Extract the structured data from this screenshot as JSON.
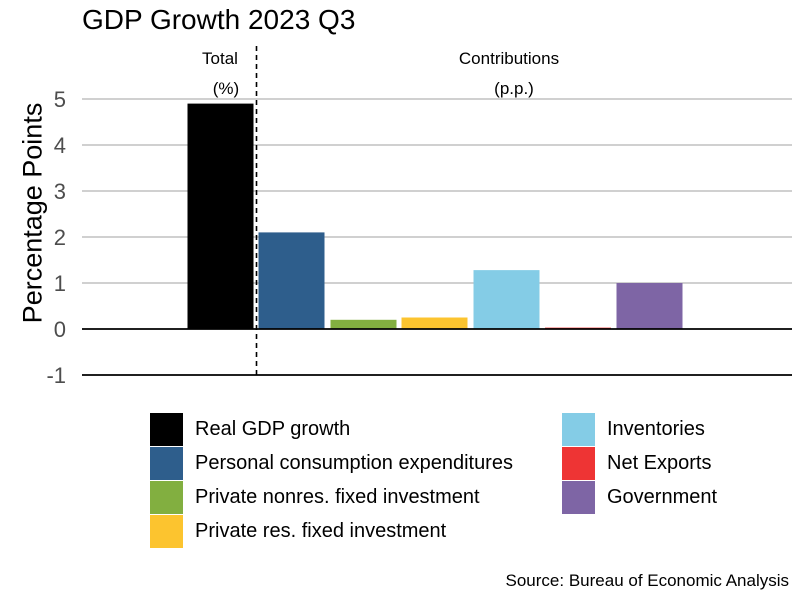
{
  "chart_data": {
    "type": "bar",
    "title": "GDP Growth 2023 Q3",
    "ylabel": "Percentage Points",
    "xlabel": "",
    "ylim": [
      -1,
      5
    ],
    "yticks": [
      -1,
      0,
      1,
      2,
      3,
      4,
      5
    ],
    "grid": true,
    "legend_position": "bottom",
    "group_labels": [
      {
        "line1": "Total",
        "line2": "(%)"
      },
      {
        "line1": "Contributions",
        "line2": "(p.p.)"
      }
    ],
    "categories": [
      "Real GDP growth",
      "Personal consumption expenditures",
      "Private nonres. fixed investment",
      "Private res. fixed investment",
      "Inventories",
      "Net Exports",
      "Government"
    ],
    "values": [
      4.9,
      2.1,
      0.2,
      0.25,
      1.28,
      0.03,
      1.0
    ],
    "colors": [
      "#000000",
      "#2E5E8C",
      "#82AF40",
      "#FCC42F",
      "#84CCE6",
      "#EE3434",
      "#7E65A5"
    ]
  },
  "source": "Source: Bureau of Economic Analysis"
}
